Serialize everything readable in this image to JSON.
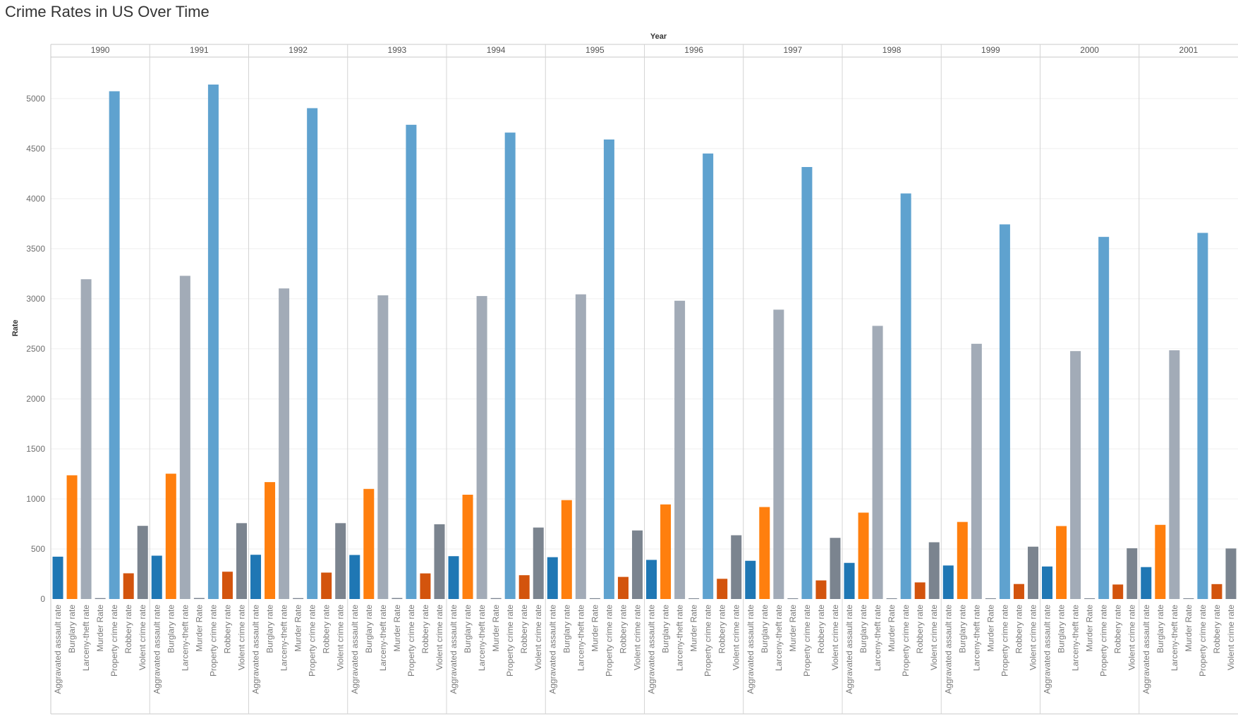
{
  "title": "Crime Rates in US Over Time",
  "chart_data": {
    "type": "bar",
    "title": "Crime Rates in US Over Time",
    "column_header": "Year",
    "ylabel": "Rate",
    "ylim": [
      0,
      5300
    ],
    "yticks": [
      0,
      500,
      1000,
      1500,
      2000,
      2500,
      3000,
      3500,
      4000,
      4500,
      5000
    ],
    "grid": true,
    "legend": "none",
    "categories": [
      "Aggravated assault rate",
      "Burglary rate",
      "Larceny-theft rate",
      "Murder Rate",
      "Property crime rate",
      "Robbery rate",
      "Violent crime rate"
    ],
    "colors": [
      "#1f77b4",
      "#ff7f0e",
      "#a2abb7",
      "#7a838f",
      "#5fa2cf",
      "#d3540d",
      "#7b848f"
    ],
    "panels": [
      {
        "year": "1990",
        "values": [
          423,
          1236,
          3195,
          9,
          5073,
          257,
          731
        ]
      },
      {
        "year": "1991",
        "values": [
          433,
          1252,
          3229,
          10,
          5140,
          273,
          758
        ]
      },
      {
        "year": "1992",
        "values": [
          442,
          1168,
          3103,
          9,
          4904,
          264,
          758
        ]
      },
      {
        "year": "1993",
        "values": [
          440,
          1100,
          3034,
          10,
          4738,
          256,
          747
        ]
      },
      {
        "year": "1994",
        "values": [
          428,
          1042,
          3027,
          9,
          4660,
          238,
          714
        ]
      },
      {
        "year": "1995",
        "values": [
          418,
          988,
          3044,
          8,
          4591,
          221,
          685
        ]
      },
      {
        "year": "1996",
        "values": [
          391,
          945,
          2980,
          7,
          4451,
          202,
          637
        ]
      },
      {
        "year": "1997",
        "values": [
          382,
          919,
          2891,
          7,
          4316,
          186,
          611
        ]
      },
      {
        "year": "1998",
        "values": [
          361,
          863,
          2729,
          6,
          4052,
          166,
          567
        ]
      },
      {
        "year": "1999",
        "values": [
          335,
          770,
          2550,
          6,
          3743,
          150,
          523
        ]
      },
      {
        "year": "2000",
        "values": [
          325,
          729,
          2477,
          6,
          3618,
          145,
          507
        ]
      },
      {
        "year": "2001",
        "values": [
          319,
          741,
          2485,
          6,
          3658,
          149,
          505
        ]
      }
    ]
  }
}
